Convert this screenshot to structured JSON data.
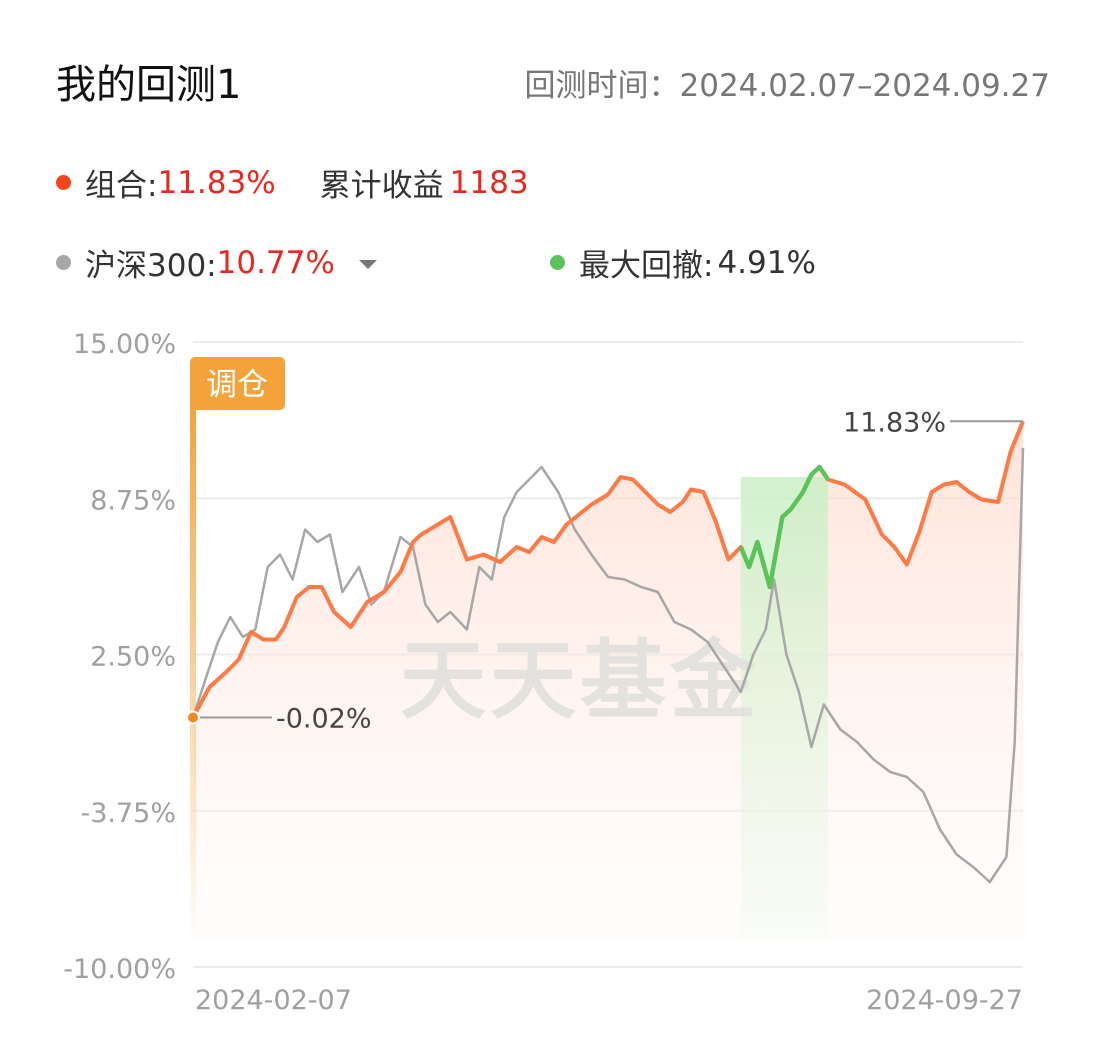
{
  "header": {
    "title": "我的回测1",
    "period_label": "回测时间：",
    "period": "2024.02.07–2024.09.27"
  },
  "legend": {
    "portfolio_label": "组合:",
    "portfolio_value": "11.83%",
    "cumulative_label": "累计收益",
    "cumulative_value": "1183",
    "benchmark_label": "沪深300:",
    "benchmark_value": "10.77%",
    "drawdown_label": "最大回撤:",
    "drawdown_value": "4.91%"
  },
  "colors": {
    "portfolio": "#ff7a45",
    "benchmark": "#a7a7a7",
    "drawdown": "#5ac35a",
    "rebalance": "#f4a23a",
    "portfolio_dot": "#f5431b"
  },
  "chart_data": {
    "type": "line",
    "y_tick_labels": [
      "15.00%",
      "8.75%",
      "2.50%",
      "-3.75%",
      "-10.00%"
    ],
    "ylim": [
      -10.0,
      15.0
    ],
    "x_tick_labels": [
      "2024-02-07",
      "2024-09-27"
    ],
    "grid": true,
    "rebalance_label": "调仓",
    "start_annotation": "-0.02%",
    "end_annotation": "11.83%",
    "watermark": "天天基金",
    "drawdown_region": {
      "start": 0.66,
      "end": 0.765,
      "label": "最大回撤"
    },
    "series": [
      {
        "name": "组合",
        "x": [
          0.0,
          0.02,
          0.04,
          0.055,
          0.07,
          0.085,
          0.1,
          0.11,
          0.125,
          0.14,
          0.155,
          0.17,
          0.19,
          0.21,
          0.23,
          0.25,
          0.265,
          0.275,
          0.29,
          0.31,
          0.33,
          0.35,
          0.37,
          0.39,
          0.405,
          0.42,
          0.435,
          0.45,
          0.465,
          0.48,
          0.5,
          0.515,
          0.53,
          0.545,
          0.56,
          0.575,
          0.59,
          0.6,
          0.615,
          0.63,
          0.645,
          0.66,
          0.67,
          0.68,
          0.695,
          0.71,
          0.72,
          0.735,
          0.745,
          0.755,
          0.765,
          0.785,
          0.81,
          0.83,
          0.845,
          0.86,
          0.875,
          0.89,
          0.905,
          0.92,
          0.935,
          0.95,
          0.97,
          0.985,
          1.0
        ],
        "values": [
          -0.02,
          1.2,
          1.8,
          2.3,
          3.4,
          3.1,
          3.1,
          3.6,
          4.8,
          5.2,
          5.2,
          4.2,
          3.6,
          4.6,
          5.0,
          5.8,
          7.0,
          7.3,
          7.6,
          8.0,
          6.3,
          6.5,
          6.2,
          6.8,
          6.6,
          7.2,
          7.0,
          7.7,
          8.1,
          8.5,
          8.9,
          9.6,
          9.5,
          9.0,
          8.5,
          8.2,
          8.6,
          9.1,
          9.0,
          7.8,
          6.3,
          6.8,
          6.0,
          7.0,
          5.2,
          8.0,
          8.3,
          9.0,
          9.7,
          10.0,
          9.5,
          9.3,
          8.7,
          7.3,
          6.8,
          6.1,
          7.4,
          9.0,
          9.3,
          9.4,
          9.0,
          8.7,
          8.6,
          10.6,
          11.83
        ]
      },
      {
        "name": "沪深300",
        "x": [
          0.0,
          0.015,
          0.03,
          0.045,
          0.06,
          0.075,
          0.09,
          0.105,
          0.12,
          0.135,
          0.15,
          0.165,
          0.18,
          0.2,
          0.215,
          0.23,
          0.25,
          0.265,
          0.28,
          0.295,
          0.31,
          0.33,
          0.345,
          0.36,
          0.375,
          0.39,
          0.405,
          0.42,
          0.44,
          0.46,
          0.48,
          0.5,
          0.52,
          0.54,
          0.56,
          0.58,
          0.6,
          0.62,
          0.64,
          0.66,
          0.675,
          0.69,
          0.7,
          0.715,
          0.73,
          0.745,
          0.76,
          0.78,
          0.8,
          0.82,
          0.84,
          0.86,
          0.88,
          0.9,
          0.92,
          0.94,
          0.96,
          0.98,
          0.99,
          1.0
        ],
        "values": [
          -0.02,
          1.5,
          3.0,
          4.0,
          3.2,
          3.5,
          6.0,
          6.5,
          5.5,
          7.5,
          7.0,
          7.3,
          5.0,
          6.0,
          4.5,
          5.0,
          7.2,
          6.8,
          4.5,
          3.8,
          4.2,
          3.5,
          6.0,
          5.5,
          8.0,
          9.0,
          9.5,
          10.0,
          9.0,
          7.5,
          6.5,
          5.6,
          5.5,
          5.2,
          5.0,
          3.8,
          3.5,
          3.0,
          2.0,
          1.0,
          2.5,
          3.5,
          5.5,
          2.5,
          1.0,
          -1.2,
          0.5,
          -0.5,
          -1.0,
          -1.7,
          -2.2,
          -2.4,
          -3.0,
          -4.5,
          -5.5,
          -6.0,
          -6.6,
          -5.6,
          -1.0,
          10.77
        ]
      }
    ]
  }
}
